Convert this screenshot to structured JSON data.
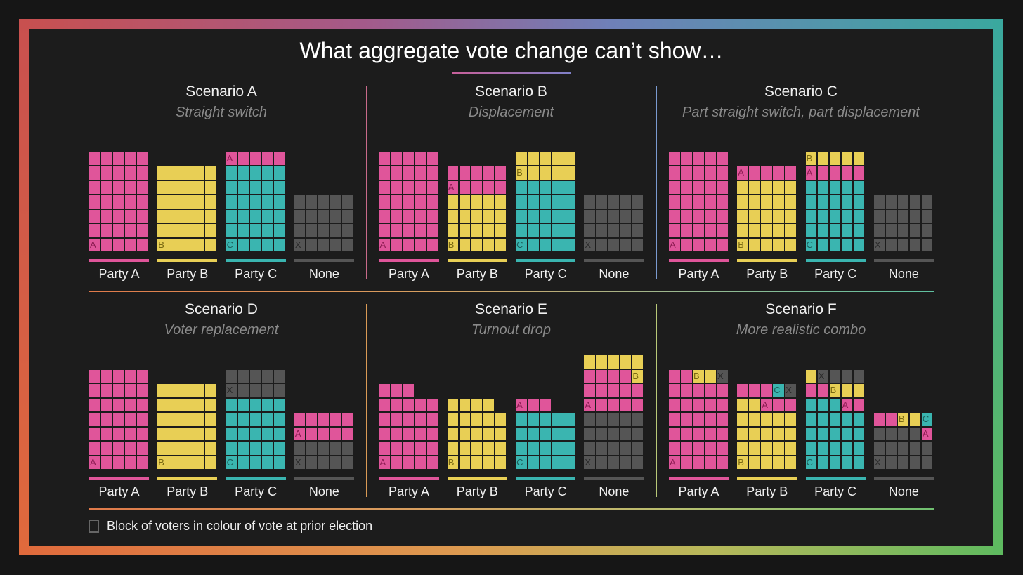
{
  "title": "What aggregate vote change can’t show…",
  "legend": "Block of voters in colour of vote at prior election",
  "colors": {
    "p": {
      "fill": "#e0559a",
      "text": "#8c1c52"
    },
    "y": {
      "fill": "#e8cf55",
      "text": "#7a6a12"
    },
    "t": {
      "fill": "#3ab5b0",
      "text": "#1c5e5a"
    },
    "g": {
      "fill": "#555555",
      "text": "#2a2a2a"
    }
  },
  "scenarios": [
    {
      "title": "Scenario A",
      "subtitle": "Straight switch",
      "bars": [
        {
          "label": "Party A",
          "color": "p",
          "rows": [
            "p p p p p",
            "p p p p p",
            "p p p p p",
            "p p p p p",
            "p p p p p",
            "p p p p p",
            "pA p p p p"
          ]
        },
        {
          "label": "Party B",
          "color": "y",
          "rows": [
            "y y y y y",
            "y y y y y",
            "y y y y y",
            "y y y y y",
            "y y y y y",
            "yB y y y y"
          ]
        },
        {
          "label": "Party C",
          "color": "t",
          "rows": [
            "pA p p p p",
            "t t t t t",
            "t t t t t",
            "t t t t t",
            "t t t t t",
            "t t t t t",
            "tC t t t t"
          ]
        },
        {
          "label": "None",
          "color": "g",
          "rows": [
            "g g g g g",
            "g g g g g",
            "g g g g g",
            "gX g g g g"
          ]
        }
      ]
    },
    {
      "title": "Scenario B",
      "subtitle": "Displacement",
      "bars": [
        {
          "label": "Party A",
          "color": "p",
          "rows": [
            "p p p p p",
            "p p p p p",
            "p p p p p",
            "p p p p p",
            "p p p p p",
            "p p p p p",
            "pA p p p p"
          ]
        },
        {
          "label": "Party B",
          "color": "y",
          "rows": [
            "p p p p p",
            "pA p p p p",
            "y y y y y",
            "y y y y y",
            "y y y y y",
            "yB y y y y"
          ]
        },
        {
          "label": "Party C",
          "color": "t",
          "rows": [
            "y y y y y",
            "yB y y y y",
            "t t t t t",
            "t t t t t",
            "t t t t t",
            "t t t t t",
            "tC t t t t"
          ]
        },
        {
          "label": "None",
          "color": "g",
          "rows": [
            "g g g g g",
            "g g g g g",
            "g g g g g",
            "gX g g g g"
          ]
        }
      ]
    },
    {
      "title": "Scenario C",
      "subtitle": "Part straight switch, part displacement",
      "bars": [
        {
          "label": "Party A",
          "color": "p",
          "rows": [
            "p p p p p",
            "p p p p p",
            "p p p p p",
            "p p p p p",
            "p p p p p",
            "p p p p p",
            "pA p p p p"
          ]
        },
        {
          "label": "Party B",
          "color": "y",
          "rows": [
            "pA p p p p",
            "y y y y y",
            "y y y y y",
            "y y y y y",
            "y y y y y",
            "yB y y y y"
          ]
        },
        {
          "label": "Party C",
          "color": "t",
          "rows": [
            "yB y y y y",
            "pA p p p p",
            "t t t t t",
            "t t t t t",
            "t t t t t",
            "t t t t t",
            "tC t t t t"
          ]
        },
        {
          "label": "None",
          "color": "g",
          "rows": [
            "g g g g g",
            "g g g g g",
            "g g g g g",
            "gX g g g g"
          ]
        }
      ]
    },
    {
      "title": "Scenario D",
      "subtitle": "Voter replacement",
      "bars": [
        {
          "label": "Party A",
          "color": "p",
          "rows": [
            "p p p p p",
            "p p p p p",
            "p p p p p",
            "p p p p p",
            "p p p p p",
            "p p p p p",
            "pA p p p p"
          ]
        },
        {
          "label": "Party B",
          "color": "y",
          "rows": [
            "y y y y y",
            "y y y y y",
            "y y y y y",
            "y y y y y",
            "y y y y y",
            "yB y y y y"
          ]
        },
        {
          "label": "Party C",
          "color": "t",
          "rows": [
            "g g g g g",
            "gX g g g g",
            "t t t t t",
            "t t t t t",
            "t t t t t",
            "t t t t t",
            "tC t t t t"
          ]
        },
        {
          "label": "None",
          "color": "g",
          "rows": [
            "p p p p p",
            "pA p p p p",
            "g g g g g",
            "gX g g g g"
          ]
        }
      ]
    },
    {
      "title": "Scenario E",
      "subtitle": "Turnout drop",
      "bars": [
        {
          "label": "Party A",
          "color": "p",
          "rows": [
            "p p p",
            "p p p p p",
            "p p p p p",
            "p p p p p",
            "p p p p p",
            "pA p p p p"
          ]
        },
        {
          "label": "Party B",
          "color": "y",
          "rows": [
            "y y y y",
            "y y y y y",
            "y y y y y",
            "y y y y y",
            "yB y y y y"
          ]
        },
        {
          "label": "Party C",
          "color": "t",
          "rows": [
            "pA p p",
            "t t t t t",
            "t t t t t",
            "t t t t t",
            "tC t t t t"
          ]
        },
        {
          "label": "None",
          "color": "g",
          "rows": [
            "y y y y y",
            "p p p p yB",
            "p p p p p",
            "pA p p p p",
            "g g g g g",
            "g g g g g",
            "g g g g g",
            "gX g g g g"
          ]
        }
      ]
    },
    {
      "title": "Scenario F",
      "subtitle": "More realistic combo",
      "bars": [
        {
          "label": "Party A",
          "color": "p",
          "rows": [
            "p p yB y gX",
            "p p p p p",
            "p p p p p",
            "p p p p p",
            "p p p p p",
            "p p p p p",
            "pA p p p p"
          ]
        },
        {
          "label": "Party B",
          "color": "y",
          "rows": [
            "p p p tC gX",
            "y y pA p p",
            "y y y y y",
            "y y y y y",
            "y y y y y",
            "yB y y y y"
          ]
        },
        {
          "label": "Party C",
          "color": "t",
          "rows": [
            "y gX g g g",
            "p p yB y y",
            "t t t pA p",
            "t t t t t",
            "t t t t t",
            "t t t t t",
            "tC t t t t"
          ]
        },
        {
          "label": "None",
          "color": "g",
          "rows": [
            "p p yB y tC",
            "g g g g pA",
            "g g g g g",
            "gX g g g g"
          ]
        }
      ]
    }
  ]
}
